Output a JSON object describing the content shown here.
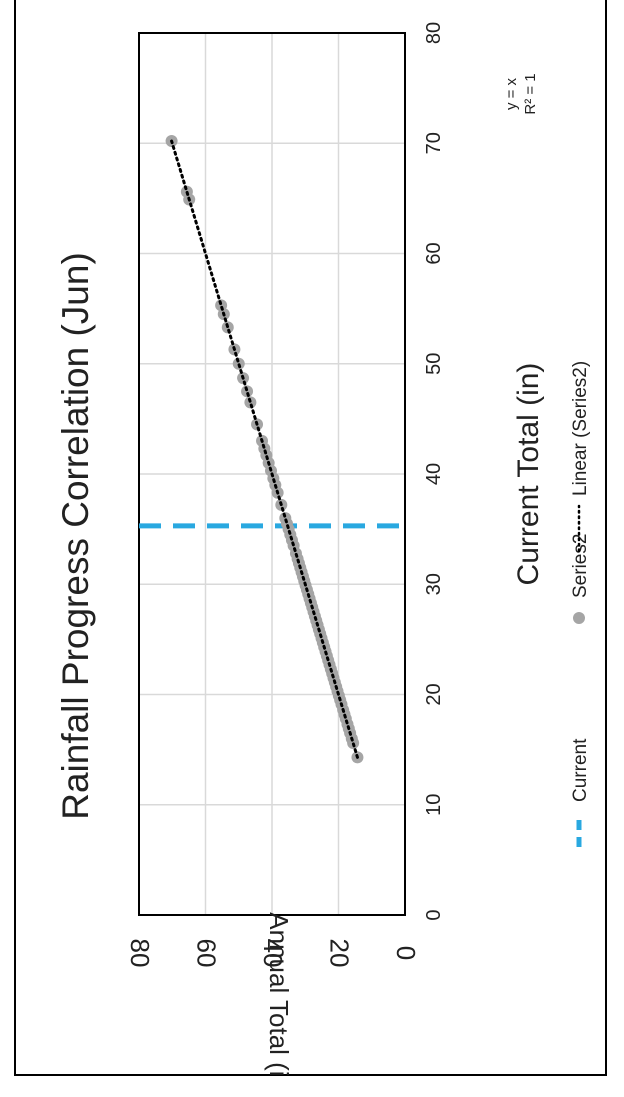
{
  "chart_data": {
    "type": "scatter",
    "title": "Rainfall Progress Correlation (Jun)",
    "xlabel": "Current Total (in)",
    "ylabel": "Annual Total (in)",
    "xlim": [
      0,
      80
    ],
    "ylim": [
      0,
      80
    ],
    "x_ticks": [
      "0",
      "10",
      "20",
      "30",
      "40",
      "50",
      "60",
      "70",
      "80"
    ],
    "y_ticks": [
      "0",
      "20",
      "40",
      "60",
      "80"
    ],
    "grid": true,
    "orientation": "rotated 90 degrees counter-clockwise",
    "legend_position": "bottom",
    "series": [
      {
        "name": "Series2",
        "kind": "scatter",
        "color": "#A5A5A5",
        "points": [
          [
            14.3,
            14.3
          ],
          [
            15.6,
            15.6
          ],
          [
            16.0,
            16.0
          ],
          [
            16.5,
            16.5
          ],
          [
            16.9,
            16.9
          ],
          [
            17.3,
            17.3
          ],
          [
            17.8,
            17.8
          ],
          [
            18.2,
            18.2
          ],
          [
            18.6,
            18.6
          ],
          [
            19.1,
            19.1
          ],
          [
            19.5,
            19.5
          ],
          [
            19.9,
            19.9
          ],
          [
            20.3,
            20.3
          ],
          [
            20.7,
            20.7
          ],
          [
            21.1,
            21.1
          ],
          [
            21.5,
            21.5
          ],
          [
            21.9,
            21.9
          ],
          [
            22.3,
            22.3
          ],
          [
            22.7,
            22.7
          ],
          [
            23.1,
            23.1
          ],
          [
            23.5,
            23.5
          ],
          [
            23.9,
            23.9
          ],
          [
            24.3,
            24.3
          ],
          [
            24.7,
            24.7
          ],
          [
            25.1,
            25.1
          ],
          [
            25.5,
            25.5
          ],
          [
            25.9,
            25.9
          ],
          [
            26.3,
            26.3
          ],
          [
            26.7,
            26.7
          ],
          [
            27.1,
            27.1
          ],
          [
            27.5,
            27.5
          ],
          [
            27.9,
            27.9
          ],
          [
            28.3,
            28.3
          ],
          [
            28.7,
            28.7
          ],
          [
            29.1,
            29.1
          ],
          [
            29.5,
            29.5
          ],
          [
            29.9,
            29.9
          ],
          [
            30.3,
            30.3
          ],
          [
            30.7,
            30.7
          ],
          [
            31.1,
            31.1
          ],
          [
            31.5,
            31.5
          ],
          [
            31.9,
            31.9
          ],
          [
            32.3,
            32.3
          ],
          [
            32.8,
            32.8
          ],
          [
            33.5,
            33.5
          ],
          [
            34.0,
            34.0
          ],
          [
            34.5,
            34.5
          ],
          [
            35.0,
            35.0
          ],
          [
            35.5,
            35.5
          ],
          [
            36.0,
            36.0
          ],
          [
            37.2,
            37.2
          ],
          [
            38.3,
            38.3
          ],
          [
            39.0,
            39.0
          ],
          [
            39.6,
            39.6
          ],
          [
            40.3,
            40.3
          ],
          [
            41.0,
            41.0
          ],
          [
            41.7,
            41.7
          ],
          [
            42.3,
            42.3
          ],
          [
            43.0,
            43.0
          ],
          [
            44.5,
            44.5
          ],
          [
            46.5,
            46.5
          ],
          [
            47.5,
            47.5
          ],
          [
            48.7,
            48.7
          ],
          [
            50.0,
            50.0
          ],
          [
            51.3,
            51.3
          ],
          [
            53.3,
            53.3
          ],
          [
            54.5,
            54.5
          ],
          [
            55.3,
            55.3
          ],
          [
            64.9,
            64.9
          ],
          [
            65.6,
            65.6
          ],
          [
            70.2,
            70.2
          ]
        ]
      },
      {
        "name": "Current",
        "kind": "vertical-line",
        "color": "#29A8E0",
        "x": 35.3
      },
      {
        "name": "Linear (Series2)",
        "kind": "trendline",
        "color": "#000000",
        "x": [
          14.3,
          70.2
        ]
      }
    ],
    "trendline_equation": "y = x",
    "trendline_r2": "R² = 1",
    "legend": [
      "Current",
      "Series2",
      "Linear (Series2)"
    ]
  }
}
